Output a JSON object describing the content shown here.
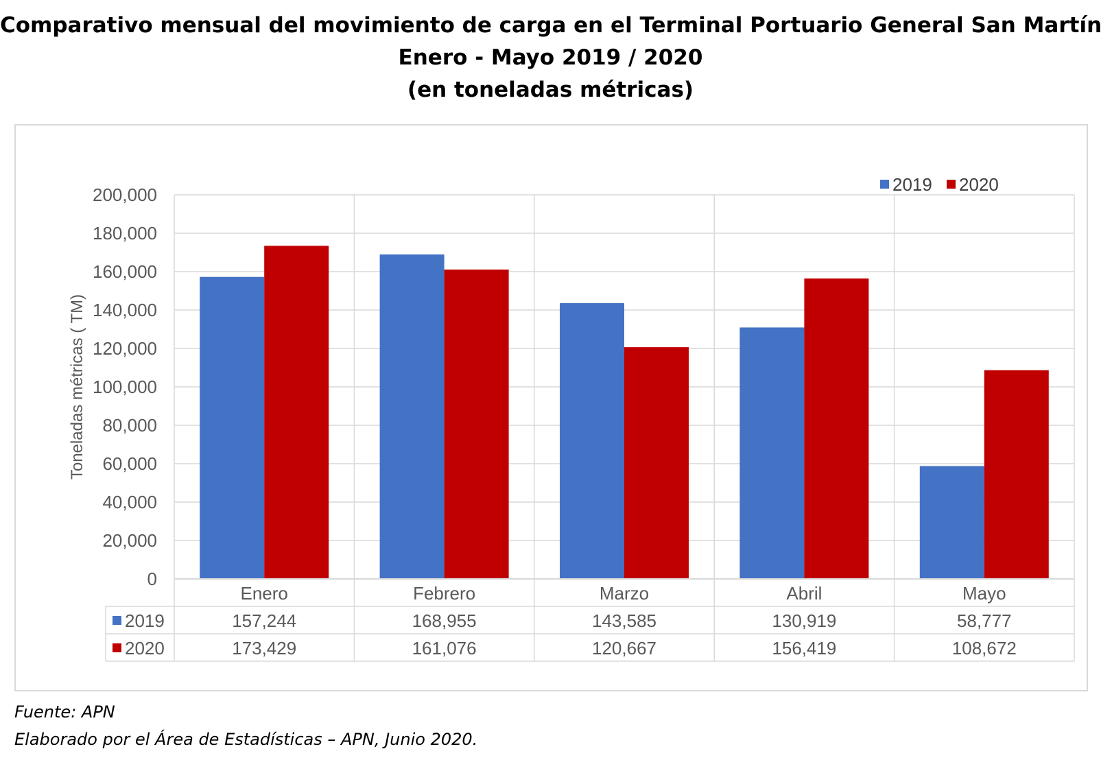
{
  "title_lines": [
    "Comparativo mensual del movimiento de carga en el Terminal Portuario General San Martín",
    "Enero -  Mayo 2019 / 2020",
    "(en toneladas métricas)"
  ],
  "footer": {
    "source": "Fuente: APN",
    "credit": "Elaborado por el Área de Estadísticas – APN, Junio 2020."
  },
  "chart_data": {
    "type": "bar",
    "ylabel": "Toneladas métricas ( TM)",
    "xlabel": "",
    "ylim": [
      0,
      200000
    ],
    "yticks": [
      0,
      20000,
      40000,
      60000,
      80000,
      100000,
      120000,
      140000,
      160000,
      180000,
      200000
    ],
    "ytick_labels": [
      "0",
      "20,000",
      "40,000",
      "60,000",
      "80,000",
      "100,000",
      "120,000",
      "140,000",
      "160,000",
      "180,000",
      "200,000"
    ],
    "categories": [
      "Enero",
      "Febrero",
      "Marzo",
      "Abril",
      "Mayo"
    ],
    "series": [
      {
        "name": "2019",
        "color": "#4472c4",
        "values": [
          157244,
          168955,
          143585,
          130919,
          58777
        ],
        "labels": [
          "157,244",
          "168,955",
          "143,585",
          "130,919",
          "58,777"
        ]
      },
      {
        "name": "2020",
        "color": "#c00000",
        "values": [
          173429,
          161076,
          120667,
          156419,
          108672
        ],
        "labels": [
          "173,429",
          "161,076",
          "120,667",
          "156,419",
          "108,672"
        ]
      }
    ],
    "grid": true,
    "legend_position": "top-right",
    "data_table": true
  }
}
